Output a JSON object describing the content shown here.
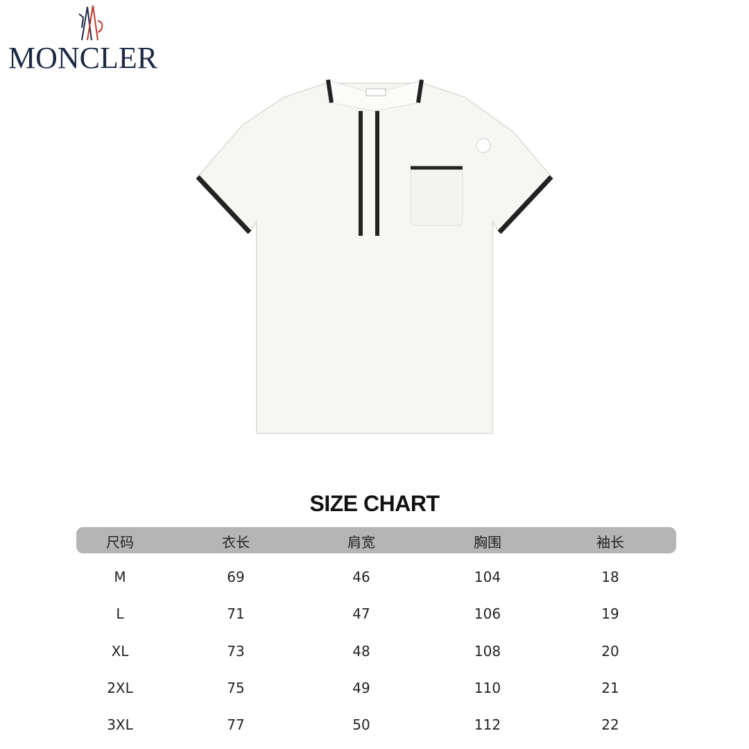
{
  "brand": {
    "name": "MONCLER",
    "colors": {
      "navy": "#1b2a44",
      "red": "#c0392b"
    }
  },
  "product": {
    "description_icon": "white-polo-shirt-black-trim",
    "colors": {
      "body": "#f6f6f3",
      "trim": "#222222"
    }
  },
  "size_chart": {
    "title": "SIZE CHART",
    "headers": [
      "尺码",
      "衣长",
      "肩宽",
      "胸围",
      "袖长"
    ],
    "rows": [
      [
        "M",
        "69",
        "46",
        "104",
        "18"
      ],
      [
        "L",
        "71",
        "47",
        "106",
        "19"
      ],
      [
        "XL",
        "73",
        "48",
        "108",
        "20"
      ],
      [
        "2XL",
        "75",
        "49",
        "110",
        "21"
      ],
      [
        "3XL",
        "77",
        "50",
        "112",
        "22"
      ]
    ]
  }
}
